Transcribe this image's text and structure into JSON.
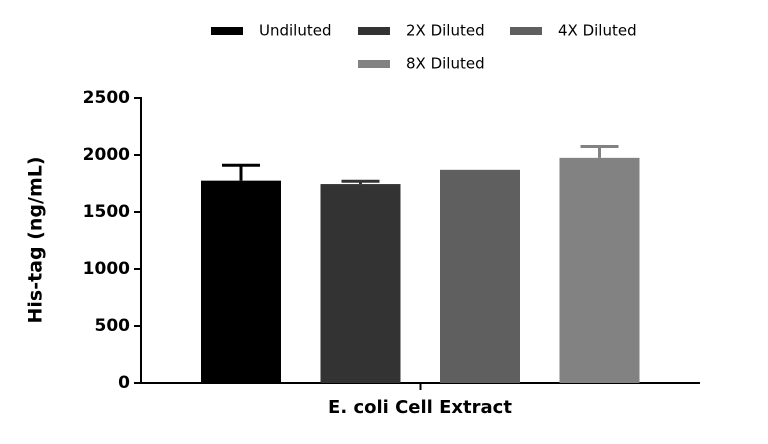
{
  "chart_data": {
    "type": "bar",
    "categories": [
      "E. coli Cell Extract"
    ],
    "xlabel": "E. coli Cell Extract",
    "ylabel": "His-tag (ng/mL)",
    "series": [
      {
        "name": "Undiluted",
        "color": "#000000",
        "values": [
          1775
        ],
        "errors": [
          135
        ]
      },
      {
        "name": "2X Diluted",
        "color": "#333333",
        "values": [
          1745
        ],
        "errors": [
          25
        ]
      },
      {
        "name": "4X Diluted",
        "color": "#5f5f5f",
        "values": [
          1870
        ],
        "errors": [
          null
        ]
      },
      {
        "name": "8X Diluted",
        "color": "#828282",
        "values": [
          1975
        ],
        "errors": [
          100
        ]
      }
    ],
    "ylim": [
      0,
      2500
    ],
    "yticks": [
      0,
      500,
      1000,
      1500,
      2000,
      2500
    ],
    "legend": "top"
  }
}
